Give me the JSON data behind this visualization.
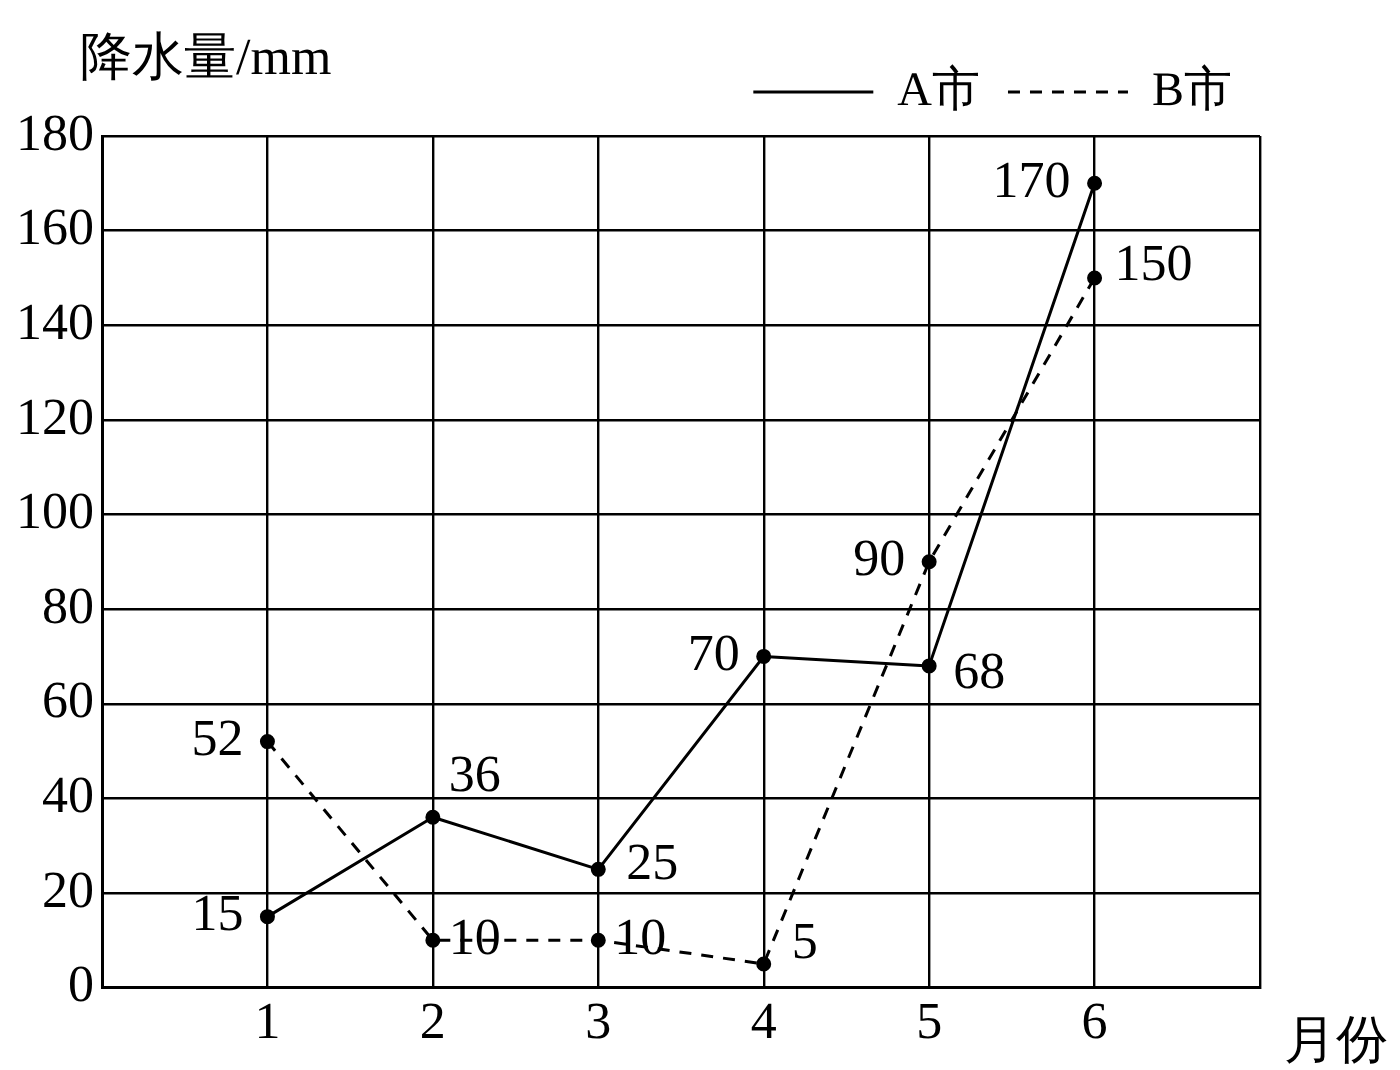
{
  "chart_data": {
    "type": "line",
    "xlabel": "月份",
    "ylabel": "降水量/mm",
    "x": [
      1,
      2,
      3,
      4,
      5,
      6
    ],
    "xlim": [
      0,
      7
    ],
    "xticks": [
      {
        "value": 0,
        "label": null
      },
      1,
      2,
      3,
      4,
      5,
      6,
      {
        "value": 7,
        "label": null
      }
    ],
    "ylim": [
      0,
      180
    ],
    "yticks": [
      0,
      20,
      40,
      60,
      80,
      100,
      120,
      140,
      160,
      180
    ],
    "series": [
      {
        "name": "A市",
        "color": "#000000",
        "values": [
          15,
          36,
          25,
          70,
          68,
          170
        ],
        "line_style": "solid"
      },
      {
        "name": "B市",
        "color": "#000000",
        "values": [
          52,
          10,
          10,
          5,
          90,
          150
        ],
        "line_style": "dashed"
      }
    ],
    "data_labels": true,
    "grid": true,
    "legend": "top right",
    "marker": "circle"
  }
}
